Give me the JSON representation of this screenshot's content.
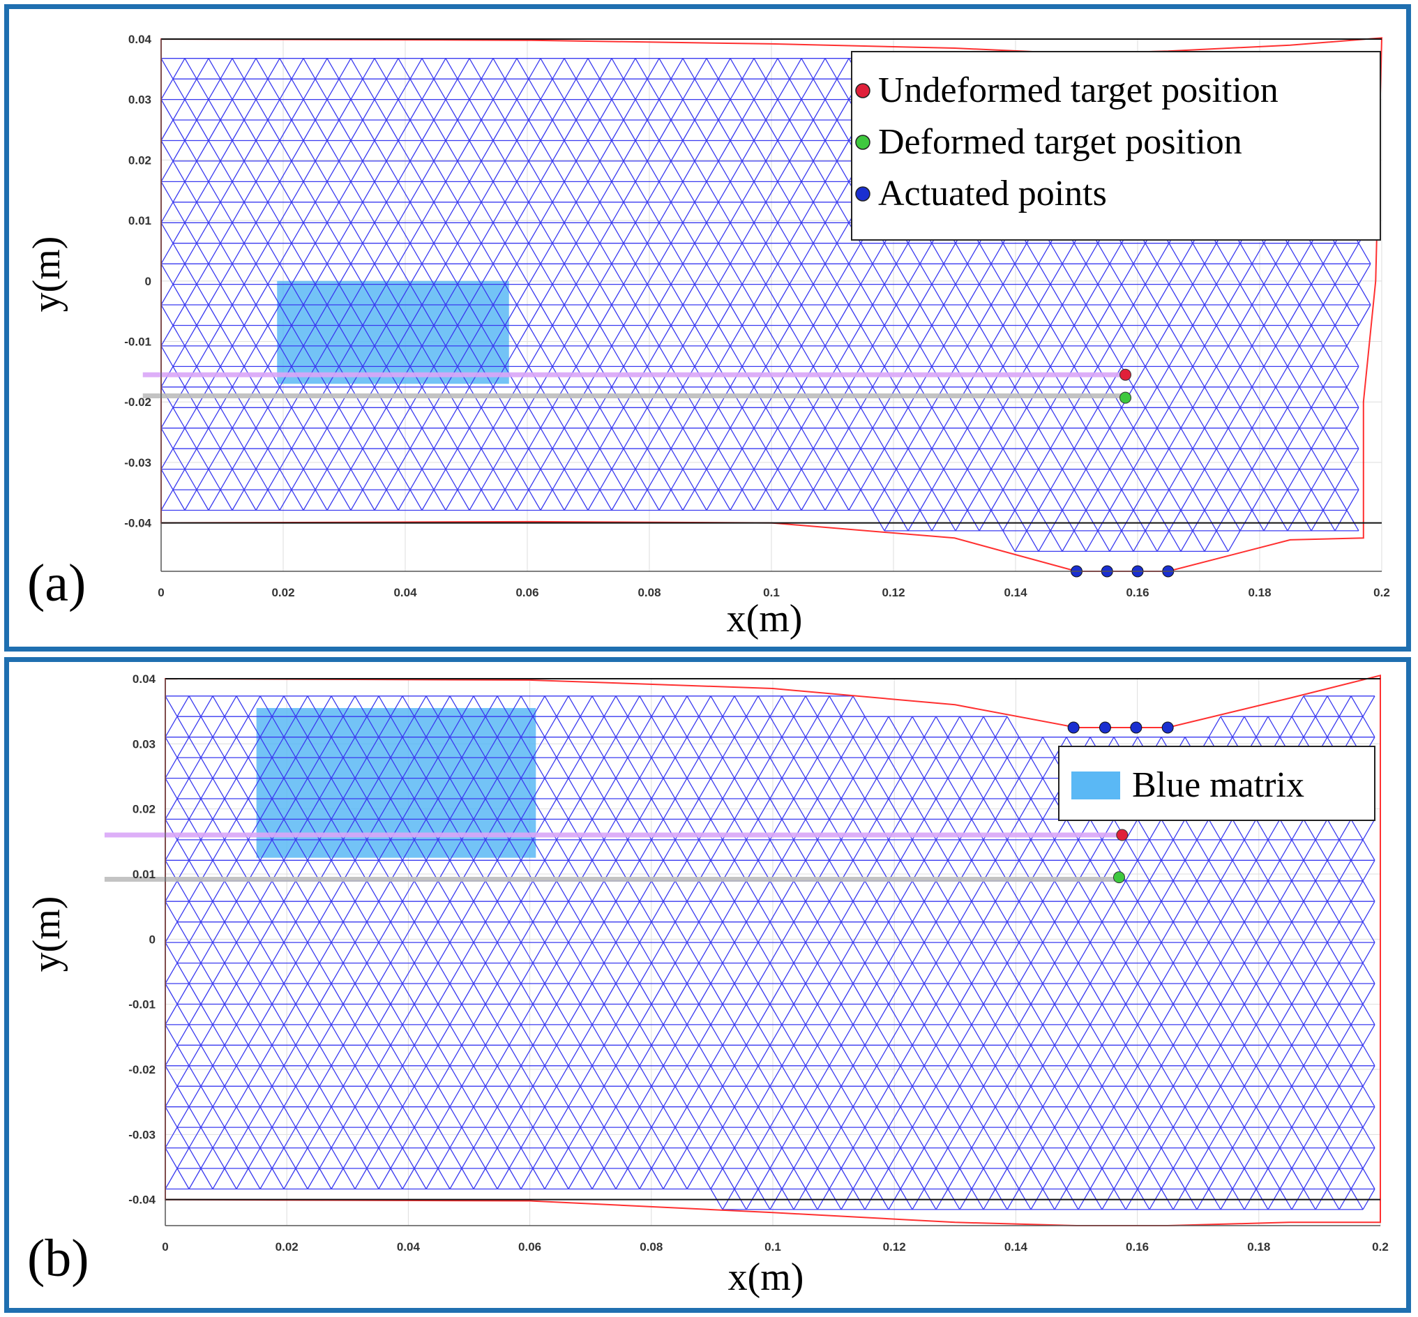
{
  "colors": {
    "frame": "#1f6fb0",
    "mesh": "#3a3af0",
    "boundary": "#ff3030",
    "undeformed": "#e0203a",
    "deformed": "#3ec83e",
    "actuated": "#1a2fd0",
    "matrix_fill": "#5ab8f5",
    "purple_line": "#d9a6f7",
    "gray_line": "#bdbdbd"
  },
  "chart_data": [
    {
      "type": "scatter",
      "panel_label": "(a)",
      "xlabel": "x(m)",
      "ylabel": "y(m)",
      "xlim": [
        0,
        0.2
      ],
      "ylim": [
        -0.048,
        0.04
      ],
      "x_ticks": [
        "0",
        "0.02",
        "0.04",
        "0.06",
        "0.08",
        "0.1",
        "0.12",
        "0.14",
        "0.16",
        "0.18",
        "0.2"
      ],
      "y_ticks": [
        "0.04",
        "0.03",
        "0.02",
        "0.01",
        "0",
        "-0.01",
        "-0.02",
        "-0.03",
        "-0.04"
      ],
      "grid": true,
      "legend": {
        "position": "top-right",
        "entries": [
          {
            "label": "Undeformed target position",
            "marker": "undeformed"
          },
          {
            "label": "Deformed target position",
            "marker": "deformed"
          },
          {
            "label": "Actuated points",
            "marker": "actuated"
          }
        ]
      },
      "blue_matrix": {
        "x": [
          0.019,
          0.057
        ],
        "y": [
          -0.017,
          0.0
        ]
      },
      "undeformed_target": {
        "x": 0.158,
        "y": -0.0155
      },
      "deformed_target": {
        "x": 0.158,
        "y": -0.0193
      },
      "undeformed_line": {
        "x": [
          -0.003,
          0.158
        ],
        "y": -0.0155
      },
      "deformed_line": {
        "x": [
          -0.003,
          0.158
        ],
        "y": -0.019
      },
      "actuated_points": {
        "x": [
          0.15,
          0.155,
          0.16,
          0.165
        ],
        "y": -0.048
      },
      "boundary_outline": {
        "x": [
          0,
          0.06,
          0.1,
          0.13,
          0.15,
          0.165,
          0.185,
          0.2,
          0.199,
          0.197,
          0.197,
          0.185,
          0.165,
          0.15,
          0.13,
          0.1,
          0.06,
          0,
          0
        ],
        "y": [
          0.04,
          0.0398,
          0.0392,
          0.0385,
          0.0376,
          0.038,
          0.039,
          0.0402,
          0.0,
          -0.02,
          -0.0425,
          -0.0428,
          -0.048,
          -0.048,
          -0.0425,
          -0.04,
          -0.0398,
          -0.04,
          0.04
        ]
      }
    },
    {
      "type": "scatter",
      "panel_label": "(b)",
      "xlabel": "x(m)",
      "ylabel": "y(m)",
      "xlim": [
        0,
        0.2
      ],
      "ylim": [
        -0.044,
        0.04
      ],
      "x_ticks": [
        "0",
        "0.02",
        "0.04",
        "0.06",
        "0.08",
        "0.1",
        "0.12",
        "0.14",
        "0.16",
        "0.18",
        "0.2"
      ],
      "y_ticks": [
        "0.04",
        "0.03",
        "0.02",
        "0.01",
        "0",
        "-0.01",
        "-0.02",
        "-0.03",
        "-0.04"
      ],
      "grid": true,
      "legend": {
        "position": "top-right",
        "entries": [
          {
            "label": "Blue matrix",
            "marker": "matrix_fill"
          }
        ]
      },
      "blue_matrix": {
        "x": [
          0.015,
          0.061
        ],
        "y": [
          0.0125,
          0.0355
        ]
      },
      "undeformed_target": {
        "x": 0.1575,
        "y": 0.016
      },
      "deformed_target": {
        "x": 0.157,
        "y": 0.0095
      },
      "undeformed_line": {
        "x": [
          -0.01,
          0.1575
        ],
        "y": 0.016
      },
      "deformed_line": {
        "x": [
          -0.01,
          0.157
        ],
        "y": 0.0092
      },
      "actuated_points": {
        "x": [
          0.1495,
          0.1547,
          0.1598,
          0.165
        ],
        "y": 0.0325
      },
      "boundary_outline": {
        "x": [
          0,
          0.06,
          0.1,
          0.13,
          0.15,
          0.165,
          0.185,
          0.2,
          0.2,
          0.185,
          0.165,
          0.15,
          0.13,
          0.1,
          0.06,
          0,
          0
        ],
        "y": [
          0.04,
          0.0398,
          0.0385,
          0.036,
          0.0325,
          0.0325,
          0.037,
          0.0405,
          -0.0435,
          -0.0435,
          -0.044,
          -0.044,
          -0.0435,
          -0.042,
          -0.0402,
          -0.04,
          0.04
        ]
      }
    }
  ]
}
